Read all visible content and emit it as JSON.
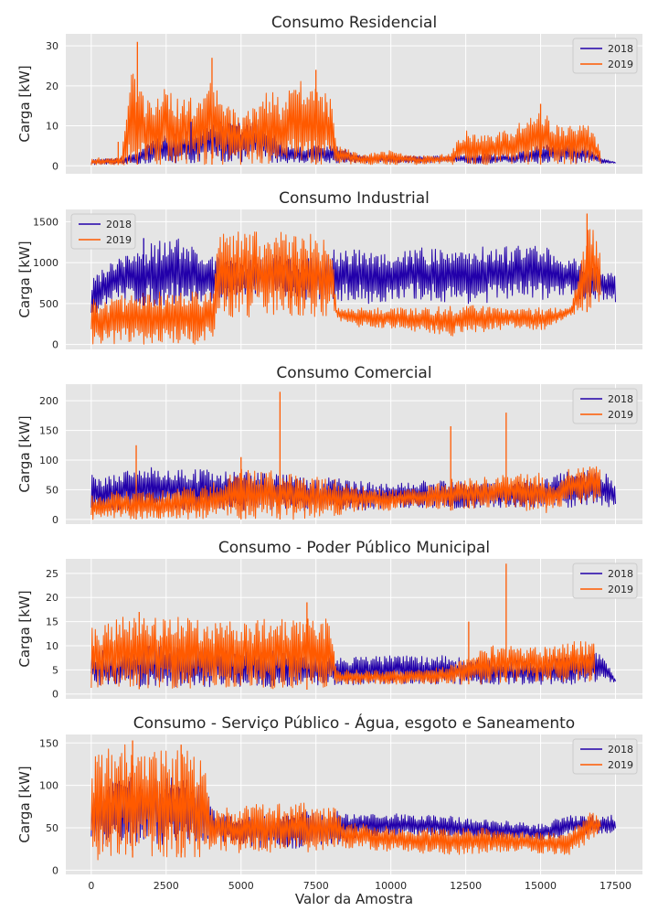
{
  "chart_data": [
    {
      "type": "line",
      "title": "Consumo Residencial",
      "ylabel": "Carga [kW]",
      "xlabel": "",
      "xlim": [
        -850,
        18400
      ],
      "ylim": [
        -2,
        33
      ],
      "yticks": [
        0,
        10,
        20,
        30
      ],
      "legend": "top-right",
      "grid": true,
      "series": [
        {
          "name": "2018",
          "color": "#2200aa",
          "x": [
            0,
            1000,
            1600,
            2000,
            2400,
            2800,
            3200,
            3600,
            4000,
            4400,
            5000,
            5500,
            6000,
            6600,
            7000,
            7600,
            8200,
            9000,
            10000,
            11000,
            12000,
            12600,
            13000,
            14000,
            15000,
            16000,
            16600,
            17000,
            17500
          ],
          "low": [
            0.3,
            0.3,
            0.5,
            0.5,
            0.5,
            0.7,
            0.7,
            0.7,
            0.8,
            0.8,
            0.9,
            0.9,
            0.7,
            0.7,
            0.8,
            0.6,
            0.7,
            0.8,
            0.7,
            0.8,
            0.8,
            0.6,
            0.6,
            0.7,
            0.7,
            0.8,
            0.6,
            0.6,
            0.6
          ],
          "high": [
            1.5,
            2,
            4,
            6,
            8,
            8,
            9,
            9,
            11,
            11,
            11,
            11,
            9,
            5,
            5,
            5,
            5,
            2.5,
            2.5,
            2.5,
            2.5,
            3,
            3,
            3,
            5.5,
            5.5,
            5.5,
            2,
            1
          ]
        },
        {
          "name": "2019",
          "color": "#ff5a00",
          "x": [
            0,
            1000,
            1400,
            1600,
            2000,
            2400,
            2800,
            3200,
            3600,
            4000,
            4400,
            5000,
            5600,
            6000,
            6400,
            7000,
            7600,
            8000,
            8200,
            9000,
            10000,
            11000,
            12000,
            12400,
            13000,
            14000,
            15000,
            15400,
            16000,
            16600,
            17000
          ],
          "low": [
            0.2,
            0.2,
            0.3,
            0.3,
            0.3,
            0.3,
            0.3,
            0.3,
            0.3,
            0.3,
            0.3,
            0.3,
            0.3,
            0.3,
            0.3,
            0.3,
            0.3,
            0.3,
            0.3,
            0.3,
            0.3,
            0.3,
            0.3,
            0.3,
            0.3,
            0.3,
            0.3,
            0.3,
            0.3,
            0.3,
            0.3
          ],
          "high": [
            2,
            2,
            28,
            20,
            16,
            21,
            17,
            17,
            17,
            23,
            17,
            13,
            17,
            19,
            17,
            22,
            20,
            18,
            5,
            3,
            4,
            2.5,
            3,
            9,
            8,
            9,
            15,
            11,
            11,
            11,
            4
          ]
        }
      ],
      "peaks": [
        {
          "series": "2018",
          "x": 3330,
          "y": 11
        },
        {
          "series": "2019",
          "x": 1540,
          "y": 31
        },
        {
          "series": "2019",
          "x": 900,
          "y": 6
        },
        {
          "series": "2019",
          "x": 4030,
          "y": 27
        },
        {
          "series": "2019",
          "x": 7500,
          "y": 24
        },
        {
          "series": "2019",
          "x": 15000,
          "y": 15.5
        }
      ]
    },
    {
      "type": "line",
      "title": "Consumo Industrial",
      "ylabel": "Carga [kW]",
      "xlabel": "",
      "xlim": [
        -850,
        18400
      ],
      "ylim": [
        -60,
        1650
      ],
      "yticks": [
        0,
        500,
        1000,
        1500
      ],
      "legend": "top-left",
      "grid": true,
      "series": [
        {
          "name": "2018",
          "color": "#2200aa",
          "x": [
            0,
            1000,
            2000,
            3000,
            4000,
            5000,
            6000,
            7000,
            8000,
            9000,
            10000,
            11000,
            12000,
            13000,
            14000,
            15000,
            16000,
            17000,
            17500
          ],
          "low": [
            350,
            550,
            450,
            500,
            500,
            600,
            600,
            550,
            550,
            500,
            500,
            550,
            500,
            500,
            550,
            550,
            550,
            550,
            500
          ],
          "high": [
            800,
            1100,
            1250,
            1300,
            1100,
            1000,
            1100,
            1050,
            1150,
            1200,
            1100,
            1200,
            1150,
            1200,
            1200,
            1250,
            1100,
            950,
            850
          ]
        },
        {
          "name": "2019",
          "color": "#ff5a00",
          "x": [
            0,
            1000,
            2000,
            3000,
            4100,
            4200,
            5000,
            6000,
            7000,
            8000,
            8200,
            9000,
            10000,
            11000,
            12000,
            13000,
            14000,
            15000,
            16000,
            16600,
            17000
          ],
          "low": [
            0,
            0,
            0,
            0,
            0,
            300,
            320,
            330,
            330,
            320,
            300,
            200,
            200,
            150,
            100,
            150,
            200,
            150,
            350,
            400,
            500
          ],
          "high": [
            550,
            600,
            650,
            650,
            650,
            1380,
            1380,
            1380,
            1380,
            1350,
            450,
            450,
            450,
            450,
            480,
            480,
            450,
            450,
            450,
            1550,
            1200
          ]
        }
      ],
      "peaks": [
        {
          "series": "2019",
          "x": 16550,
          "y": 1600
        },
        {
          "series": "2018",
          "x": 1750,
          "y": 1300
        }
      ]
    },
    {
      "type": "line",
      "title": "Consumo Comercial",
      "ylabel": "Carga [kW]",
      "xlabel": "",
      "xlim": [
        -850,
        18400
      ],
      "ylim": [
        -8,
        228
      ],
      "yticks": [
        0,
        50,
        100,
        150,
        200
      ],
      "legend": "top-right",
      "grid": true,
      "series": [
        {
          "name": "2018",
          "color": "#2200aa",
          "x": [
            0,
            1000,
            2000,
            3000,
            4000,
            5000,
            6000,
            7000,
            8000,
            9000,
            10000,
            11000,
            12000,
            13000,
            14000,
            15000,
            16000,
            17000,
            17500
          ],
          "low": [
            12,
            15,
            15,
            15,
            15,
            15,
            15,
            12,
            15,
            15,
            18,
            20,
            18,
            18,
            20,
            20,
            20,
            20,
            20
          ],
          "high": [
            75,
            80,
            90,
            85,
            85,
            80,
            80,
            70,
            70,
            65,
            65,
            65,
            65,
            60,
            65,
            70,
            85,
            85,
            65
          ]
        },
        {
          "name": "2019",
          "color": "#ff5a00",
          "x": [
            0,
            1000,
            2000,
            3000,
            4000,
            5000,
            6000,
            7000,
            8000,
            9000,
            10000,
            11000,
            12000,
            13000,
            14000,
            15000,
            15500,
            16000,
            17000
          ],
          "low": [
            0,
            0,
            0,
            0,
            0,
            0,
            0,
            0,
            5,
            15,
            15,
            20,
            15,
            20,
            20,
            5,
            20,
            25,
            30
          ],
          "high": [
            40,
            50,
            45,
            55,
            60,
            85,
            85,
            75,
            70,
            55,
            50,
            55,
            70,
            70,
            80,
            80,
            60,
            90,
            90
          ]
        }
      ],
      "peaks": [
        {
          "series": "2019",
          "x": 6300,
          "y": 215
        },
        {
          "series": "2019",
          "x": 13850,
          "y": 180
        },
        {
          "series": "2019",
          "x": 12000,
          "y": 157
        },
        {
          "series": "2019",
          "x": 1500,
          "y": 125
        },
        {
          "series": "2019",
          "x": 5000,
          "y": 105
        }
      ]
    },
    {
      "type": "line",
      "title": "Consumo - Poder Público Municipal",
      "ylabel": "Carga [kW]",
      "xlabel": "",
      "xlim": [
        -850,
        18400
      ],
      "ylim": [
        -1,
        28
      ],
      "yticks": [
        0,
        5,
        10,
        15,
        20,
        25
      ],
      "legend": "top-right",
      "grid": true,
      "series": [
        {
          "name": "2018",
          "color": "#2200aa",
          "x": [
            0,
            1000,
            2000,
            3000,
            4000,
            5000,
            6000,
            7000,
            8000,
            9000,
            10000,
            11000,
            12000,
            13000,
            14000,
            15000,
            16000,
            17000,
            17500
          ],
          "low": [
            2,
            1.5,
            1.5,
            1.5,
            1.5,
            1.5,
            1.5,
            1.5,
            1.5,
            2,
            2,
            2,
            2,
            2,
            2,
            2,
            2,
            2.5,
            2.5
          ],
          "high": [
            9,
            9,
            10,
            10,
            10,
            9,
            9,
            9,
            8,
            8,
            8,
            8,
            8,
            7,
            7,
            7,
            8,
            9,
            3
          ]
        },
        {
          "name": "2019",
          "color": "#ff5a00",
          "x": [
            0,
            1000,
            2000,
            3000,
            4000,
            5000,
            6000,
            7000,
            8000,
            8200,
            9000,
            10000,
            11000,
            12000,
            13000,
            14000,
            15000,
            16000,
            16800
          ],
          "low": [
            1,
            1,
            1,
            1,
            1,
            1,
            1,
            1,
            0.5,
            2,
            2,
            2,
            2,
            2,
            2,
            2.5,
            2.5,
            2.5,
            2.5
          ],
          "high": [
            14,
            16,
            16,
            16,
            15,
            15,
            16,
            16,
            16,
            5,
            5,
            5,
            5,
            6,
            10,
            10,
            10,
            11,
            11
          ]
        }
      ],
      "peaks": [
        {
          "series": "2019",
          "x": 13850,
          "y": 27
        },
        {
          "series": "2019",
          "x": 7200,
          "y": 19
        },
        {
          "series": "2019",
          "x": 12600,
          "y": 15
        },
        {
          "series": "2019",
          "x": 1600,
          "y": 17
        }
      ]
    },
    {
      "type": "line",
      "title": "Consumo - Serviço Público - Água, esgoto e Saneamento",
      "ylabel": "Carga [kW]",
      "xlabel": "Valor da Amostra",
      "xlim": [
        -850,
        18400
      ],
      "ylim": [
        -5,
        160
      ],
      "yticks": [
        0,
        50,
        100,
        150
      ],
      "xticks": [
        0,
        2500,
        5000,
        7500,
        10000,
        12500,
        15000,
        17500
      ],
      "legend": "top-right",
      "grid": true,
      "series": [
        {
          "name": "2018",
          "color": "#2200aa",
          "x": [
            0,
            1000,
            2000,
            3000,
            3800,
            4200,
            5000,
            6000,
            7000,
            8000,
            9000,
            10000,
            11000,
            12000,
            13000,
            14000,
            15000,
            16000,
            17000,
            17500
          ],
          "low": [
            30,
            30,
            30,
            30,
            30,
            35,
            30,
            25,
            25,
            25,
            40,
            40,
            40,
            40,
            35,
            35,
            35,
            40,
            42,
            42
          ],
          "high": [
            90,
            110,
            110,
            110,
            100,
            65,
            65,
            65,
            70,
            70,
            68,
            68,
            65,
            65,
            60,
            58,
            55,
            65,
            65,
            65
          ]
        },
        {
          "name": "2019",
          "color": "#ff5a00",
          "x": [
            0,
            500,
            1000,
            2000,
            3000,
            3700,
            4000,
            5000,
            6000,
            7000,
            8200,
            8400,
            9000,
            10000,
            11000,
            12000,
            13000,
            14000,
            15000,
            16000,
            16500,
            17000
          ],
          "low": [
            10,
            10,
            15,
            15,
            15,
            15,
            25,
            20,
            20,
            20,
            25,
            25,
            25,
            22,
            20,
            18,
            20,
            22,
            20,
            18,
            30,
            45
          ],
          "high": [
            130,
            145,
            150,
            145,
            145,
            140,
            75,
            75,
            80,
            80,
            75,
            55,
            55,
            52,
            50,
            50,
            50,
            45,
            45,
            45,
            70,
            65
          ]
        }
      ],
      "peaks": [
        {
          "series": "2019",
          "x": 1380,
          "y": 153
        },
        {
          "series": "2019",
          "x": 3000,
          "y": 148
        }
      ]
    }
  ]
}
